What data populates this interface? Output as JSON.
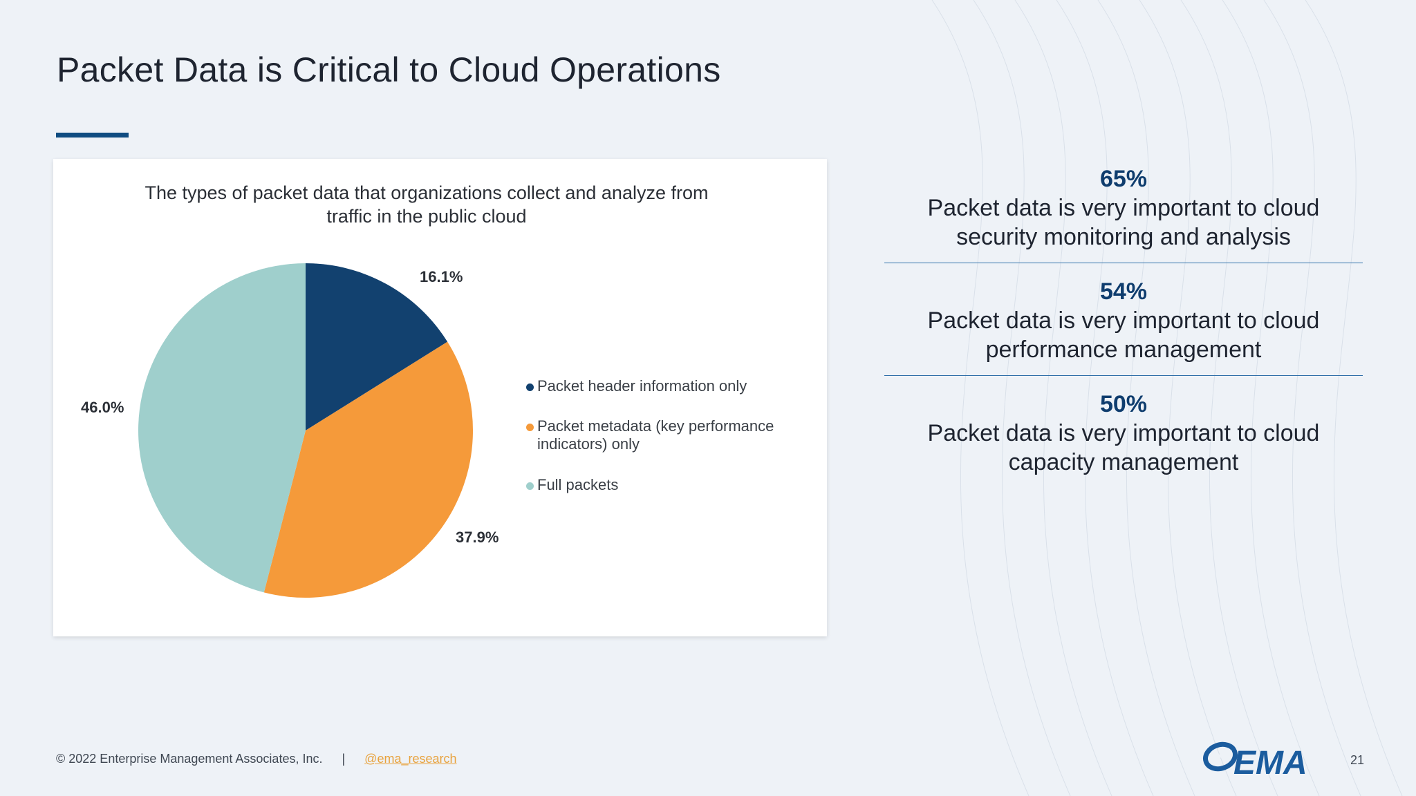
{
  "slide": {
    "title": "Packet Data is Critical to Cloud Operations",
    "page_number": "21"
  },
  "colors": {
    "navy": "#12416f",
    "orange": "#f59a3a",
    "teal": "#9fcfcc",
    "accent_rule": "#0f4c81"
  },
  "chart_data": {
    "type": "pie",
    "title": "The types of packet data that organizations collect and analyze from traffic in the public cloud",
    "slices": [
      {
        "name": "Packet header information only",
        "value": 16.1,
        "label": "16.1%",
        "color": "#12416f"
      },
      {
        "name": "Packet metadata (key performance indicators) only",
        "value": 37.9,
        "label": "37.9%",
        "color": "#f59a3a"
      },
      {
        "name": "Full packets",
        "value": 46.0,
        "label": "46.0%",
        "color": "#9fcfcc"
      }
    ],
    "legend_position": "right"
  },
  "stats": [
    {
      "value": "65%",
      "text": "Packet data is very important to cloud security monitoring and analysis"
    },
    {
      "value": "54%",
      "text": "Packet data is very important to cloud performance management"
    },
    {
      "value": "50%",
      "text": "Packet data is very important to cloud capacity management"
    }
  ],
  "footer": {
    "copyright": "© 2022 Enterprise Management Associates, Inc.",
    "separator": "|",
    "handle": "@ema_research"
  },
  "logo": {
    "text": "EMA",
    "icon": "ema-swoosh-icon"
  }
}
